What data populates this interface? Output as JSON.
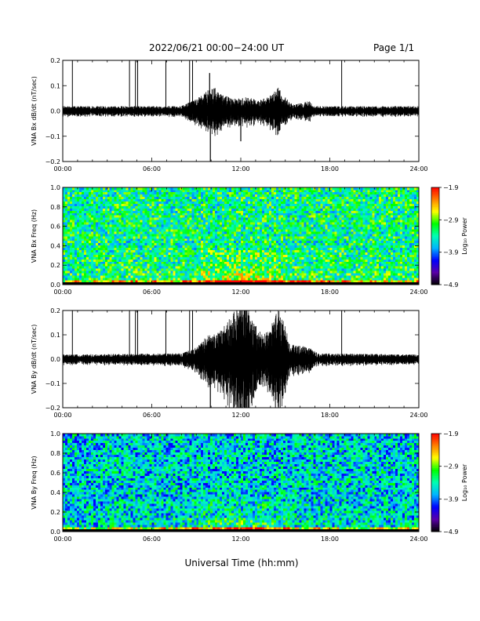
{
  "header": {
    "title": "2022/06/21  00:00−24:00 UT",
    "page": "Page 1/1",
    "xlabel": "Universal Time (hh:mm)"
  },
  "colors": {
    "trace": "#000000",
    "spectrogram_scale": [
      "#000000",
      "#5a00a8",
      "#0000ff",
      "#00b4ff",
      "#00ffb4",
      "#00ff00",
      "#ffff00",
      "#ff8000",
      "#ff0000"
    ]
  },
  "chart_data": [
    {
      "type": "line",
      "title": "",
      "ylabel": "VNA Bx dB/dt (nT/sec)",
      "xlabel": "",
      "xlim": [
        0,
        24
      ],
      "ylim": [
        -0.2,
        0.2
      ],
      "x_ticks": [
        "00:00",
        "06:00",
        "12:00",
        "18:00",
        "24:00"
      ],
      "y_ticks": [
        "0.2",
        "0.1",
        "0.0",
        "−0.1",
        "−0.2"
      ],
      "spikes_hours": [
        0.65,
        4.5,
        4.9,
        5.05,
        6.95,
        8.55,
        8.75,
        18.8
      ],
      "activity_envelope": [
        [
          0,
          0.012
        ],
        [
          8,
          0.012
        ],
        [
          9,
          0.03
        ],
        [
          9.7,
          0.05
        ],
        [
          10.2,
          0.06
        ],
        [
          10.5,
          0.045
        ],
        [
          11.5,
          0.03
        ],
        [
          12.5,
          0.035
        ],
        [
          13.2,
          0.025
        ],
        [
          14.0,
          0.04
        ],
        [
          14.6,
          0.06
        ],
        [
          15.0,
          0.035
        ],
        [
          15.5,
          0.015
        ],
        [
          16.6,
          0.025
        ],
        [
          17.0,
          0.012
        ],
        [
          24,
          0.012
        ]
      ],
      "extremes": [
        {
          "x": 9.9,
          "y": 0.15
        },
        {
          "x": 9.95,
          "y": -0.2
        },
        {
          "x": 12.0,
          "y": -0.12
        }
      ]
    },
    {
      "type": "heatmap",
      "title": "",
      "ylabel": "VNA Bx Freq (Hz)",
      "xlim": [
        0,
        24
      ],
      "ylim": [
        0,
        1.0
      ],
      "x_ticks": [
        "00:00",
        "06:00",
        "12:00",
        "18:00",
        "24:00"
      ],
      "y_ticks": [
        "1.0",
        "0.8",
        "0.6",
        "0.4",
        "0.2",
        "0.0"
      ],
      "colorbar": {
        "label": "Log₁₀ Power",
        "range": [
          -4.9,
          -1.9
        ],
        "ticks": [
          "−1.9",
          "−2.9",
          "−3.9",
          "−4.9"
        ]
      },
      "base_level": -3.3,
      "low_freq_enhancement": [
        [
          0,
          0.0
        ],
        [
          8,
          0.2
        ],
        [
          10,
          0.6
        ],
        [
          12,
          0.7
        ],
        [
          14,
          0.6
        ],
        [
          15,
          0.4
        ],
        [
          16,
          0.2
        ],
        [
          24,
          0.1
        ]
      ]
    },
    {
      "type": "line",
      "title": "",
      "ylabel": "VNA By dB/dt (nT/sec)",
      "xlabel": "",
      "xlim": [
        0,
        24
      ],
      "ylim": [
        -0.2,
        0.2
      ],
      "x_ticks": [
        "00:00",
        "06:00",
        "12:00",
        "18:00",
        "24:00"
      ],
      "y_ticks": [
        "0.2",
        "0.1",
        "0.0",
        "−0.1",
        "−0.2"
      ],
      "spikes_hours": [
        0.65,
        4.5,
        4.9,
        5.05,
        6.95,
        8.55,
        8.75,
        18.8
      ],
      "activity_envelope": [
        [
          0,
          0.012
        ],
        [
          8,
          0.015
        ],
        [
          9,
          0.03
        ],
        [
          9.7,
          0.06
        ],
        [
          10.5,
          0.07
        ],
        [
          11.0,
          0.09
        ],
        [
          11.8,
          0.14
        ],
        [
          12.3,
          0.16
        ],
        [
          12.8,
          0.1
        ],
        [
          13.5,
          0.06
        ],
        [
          14.2,
          0.1
        ],
        [
          14.5,
          0.13
        ],
        [
          14.9,
          0.1
        ],
        [
          15.3,
          0.04
        ],
        [
          16.6,
          0.03
        ],
        [
          17.2,
          0.015
        ],
        [
          24,
          0.012
        ]
      ],
      "extremes": [
        {
          "x": 9.95,
          "y": -0.2
        },
        {
          "x": 12.0,
          "y": 0.2
        },
        {
          "x": 12.3,
          "y": -0.19
        },
        {
          "x": 14.5,
          "y": -0.18
        }
      ]
    },
    {
      "type": "heatmap",
      "title": "",
      "ylabel": "VNA By Freq (Hz)",
      "xlim": [
        0,
        24
      ],
      "ylim": [
        0,
        1.0
      ],
      "x_ticks": [
        "00:00",
        "06:00",
        "12:00",
        "18:00",
        "24:00"
      ],
      "y_ticks": [
        "1.0",
        "0.8",
        "0.6",
        "0.4",
        "0.2",
        "0.0"
      ],
      "colorbar": {
        "label": "Log₁₀ Power",
        "range": [
          -4.9,
          -1.9
        ],
        "ticks": [
          "−1.9",
          "−2.9",
          "−3.9",
          "−4.9"
        ]
      },
      "base_level": -3.6,
      "low_freq_enhancement": [
        [
          0,
          0.0
        ],
        [
          8,
          0.2
        ],
        [
          10,
          0.5
        ],
        [
          12,
          0.6
        ],
        [
          14,
          0.5
        ],
        [
          15,
          0.3
        ],
        [
          16,
          0.15
        ],
        [
          24,
          0.1
        ]
      ]
    }
  ]
}
